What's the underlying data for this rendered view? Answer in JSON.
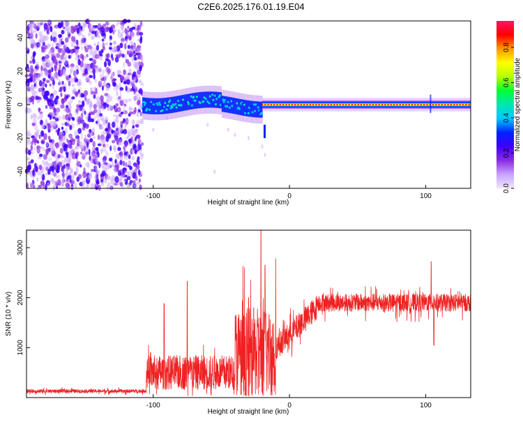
{
  "title": "C2E6.2025.176.01.19.E04",
  "colors": {
    "snr_line": "#ee2222",
    "palette": [
      "#f0e6ff",
      "#c9a3ff",
      "#8a2be2",
      "#3f00ff",
      "#0022ff",
      "#00c8ff",
      "#00e6b4",
      "#00ff33",
      "#b4ff00",
      "#ffff00",
      "#ff9900",
      "#ff0000",
      "#ff1464"
    ]
  },
  "chart_data": [
    {
      "type": "heatmap",
      "name": "spectrogram",
      "xlabel": "Height of straight line (km)",
      "ylabel": "Frequency (Hz)",
      "xlim": [
        -193,
        133
      ],
      "ylim": [
        -50,
        50
      ],
      "xticks": [
        -100,
        0,
        100
      ],
      "yticks": [
        -40,
        -20,
        0,
        20,
        40
      ],
      "colorbar": {
        "label": "Normalized spectral amplitude",
        "range": [
          0,
          0.95
        ],
        "ticks": [
          "0.0",
          "0.2",
          "0.4",
          "0.6",
          "0.8"
        ]
      },
      "regions": [
        {
          "x_range": [
            -193,
            -108
          ],
          "description_values": "noise",
          "amplitude": 0.1
        },
        {
          "x_range": [
            -108,
            -20
          ],
          "freq_center": 1,
          "freq_width": 6,
          "amplitude": 0.35
        },
        {
          "x_range": [
            -20,
            133
          ],
          "freq_center": 0,
          "freq_width": 2,
          "amplitude": 0.85
        }
      ]
    },
    {
      "type": "line",
      "name": "snr",
      "xlabel": "Height of straight line (km)",
      "ylabel": "SNR (10 * v/v)",
      "xlim": [
        -193,
        133
      ],
      "ylim": [
        0,
        3350
      ],
      "xticks": [
        -100,
        0,
        100
      ],
      "yticks": [
        1000,
        2000,
        3000
      ],
      "segments": [
        {
          "x": [
            -193,
            -105
          ],
          "mean": 130,
          "spread": 60
        },
        {
          "x": [
            -105,
            -40
          ],
          "mean": 500,
          "spread": 350
        },
        {
          "x": [
            -40,
            -10
          ],
          "mean": 900,
          "spread": 900
        },
        {
          "x": [
            -10,
            20
          ],
          "mean": 1500,
          "spread": 250
        },
        {
          "x": [
            20,
            133
          ],
          "mean": 1900,
          "spread": 180
        }
      ],
      "peaks": [
        {
          "x": -102,
          "y": 900
        },
        {
          "x": -92,
          "y": 1880
        },
        {
          "x": -75,
          "y": 2330
        },
        {
          "x": -30,
          "y": 2000
        },
        {
          "x": -21,
          "y": 3350
        },
        {
          "x": -18,
          "y": 2650
        },
        {
          "x": 104,
          "y": 2720
        },
        {
          "x": 106,
          "y": 1050
        }
      ]
    }
  ]
}
